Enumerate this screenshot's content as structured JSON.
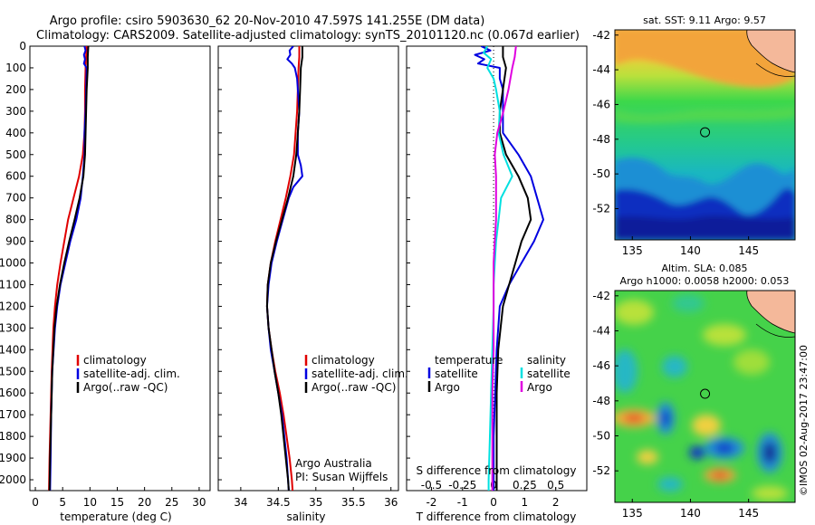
{
  "header": {
    "line1": "Argo profile: csiro 5903630_62 20-Nov-2010 47.597S 141.255E (DM data)",
    "line2": "Climatology: CARS2009. Satellite-adjusted climatology: synTS_20101120.nc (0.067d earlier)"
  },
  "colors": {
    "climatology": "#e00000",
    "satellite": "#0000e0",
    "argo": "#000000",
    "s_satellite": "#00e0e0",
    "s_argo": "#e000e0"
  },
  "chart_data": [
    {
      "type": "line",
      "panel": "temperature",
      "xlabel": "temperature (deg C)",
      "ylabel": "",
      "xlim": [
        -1,
        32
      ],
      "ylim": [
        2050,
        0
      ],
      "xticks": [
        0,
        5,
        10,
        15,
        20,
        25,
        30
      ],
      "yticks": [
        0,
        100,
        200,
        300,
        400,
        500,
        600,
        700,
        800,
        900,
        1000,
        1100,
        1200,
        1300,
        1400,
        1500,
        1600,
        1700,
        1800,
        1900,
        2000
      ],
      "legend": [
        "climatology",
        "satellite-adj. clim.",
        "Argo(..raw -QC)"
      ],
      "series": [
        {
          "name": "climatology",
          "color": "#e00000",
          "depth": [
            0,
            50,
            100,
            200,
            300,
            400,
            500,
            600,
            700,
            800,
            900,
            1000,
            1100,
            1200,
            1300,
            1500,
            1700,
            1900,
            2050
          ],
          "values": [
            9.4,
            9.3,
            9.2,
            9.1,
            9.1,
            9.0,
            8.7,
            8.0,
            7.0,
            6.0,
            5.3,
            4.6,
            4.0,
            3.6,
            3.3,
            3.0,
            2.8,
            2.6,
            2.5
          ]
        },
        {
          "name": "satellite-adj. clim.",
          "color": "#0000e0",
          "depth": [
            0,
            20,
            40,
            60,
            80,
            100,
            200,
            300,
            400,
            500,
            600,
            700,
            800,
            900,
            1000,
            1100,
            1200,
            1300,
            1500,
            1700,
            1900,
            2050
          ],
          "values": [
            9.0,
            9.2,
            8.9,
            9.1,
            8.9,
            9.4,
            9.3,
            9.2,
            9.0,
            9.0,
            8.7,
            8.3,
            7.5,
            6.4,
            5.5,
            4.6,
            4.0,
            3.6,
            3.1,
            2.9,
            2.8,
            2.7
          ]
        },
        {
          "name": "Argo(..raw -QC)",
          "color": "#000000",
          "depth": [
            0,
            50,
            100,
            200,
            300,
            400,
            500,
            600,
            700,
            800,
            900,
            1000,
            1100,
            1200,
            1300,
            1500,
            1700,
            1900,
            2050
          ],
          "values": [
            9.7,
            9.6,
            9.6,
            9.4,
            9.3,
            9.2,
            9.1,
            8.8,
            8.1,
            7.2,
            6.2,
            5.3,
            4.5,
            3.9,
            3.5,
            3.1,
            2.9,
            2.7,
            2.6
          ]
        }
      ]
    },
    {
      "type": "line",
      "panel": "salinity",
      "xlabel": "salinity",
      "xlim": [
        33.7,
        36.1
      ],
      "ylim": [
        2050,
        0
      ],
      "xticks": [
        34,
        34.5,
        35,
        35.5,
        36
      ],
      "xticklabels": [
        "34",
        "34.5",
        "35",
        "35.5",
        "36"
      ],
      "legend": [
        "climatology",
        "satellite-adj. clim.",
        "Argo(..raw -QC)"
      ],
      "annotation": [
        "Argo Australia",
        "PI: Susan Wijffels"
      ],
      "series": [
        {
          "name": "climatology",
          "color": "#e00000",
          "depth": [
            0,
            50,
            100,
            200,
            300,
            400,
            500,
            600,
            700,
            800,
            900,
            1000,
            1100,
            1200,
            1300,
            1400,
            1500,
            1600,
            1700,
            1800,
            1900,
            2000,
            2050
          ],
          "values": [
            34.78,
            34.78,
            34.77,
            34.76,
            34.75,
            34.73,
            34.71,
            34.66,
            34.6,
            34.53,
            34.46,
            34.4,
            34.36,
            34.35,
            34.37,
            34.41,
            34.46,
            34.52,
            34.57,
            34.61,
            34.65,
            34.68,
            34.69
          ]
        },
        {
          "name": "satellite-adj. clim.",
          "color": "#0000e0",
          "depth": [
            0,
            20,
            40,
            60,
            80,
            100,
            150,
            200,
            300,
            400,
            500,
            550,
            600,
            650,
            700,
            800,
            900,
            1000,
            1100,
            1200,
            1300,
            1400,
            1500,
            1600,
            1700,
            1800,
            1900,
            2000,
            2050
          ],
          "values": [
            34.7,
            34.65,
            34.66,
            34.62,
            34.68,
            34.72,
            34.75,
            34.76,
            34.78,
            34.76,
            34.76,
            34.8,
            34.82,
            34.7,
            34.64,
            34.56,
            34.48,
            34.41,
            34.37,
            34.35,
            34.37,
            34.4,
            34.45,
            34.5,
            34.55,
            34.58,
            34.61,
            34.63,
            34.64
          ]
        },
        {
          "name": "Argo(..raw -QC)",
          "color": "#000000",
          "depth": [
            0,
            50,
            100,
            200,
            300,
            400,
            500,
            600,
            700,
            800,
            900,
            1000,
            1100,
            1200,
            1300,
            1400,
            1500,
            1600,
            1700,
            1800,
            1900,
            2000,
            2050
          ],
          "values": [
            34.82,
            34.82,
            34.8,
            34.79,
            34.78,
            34.76,
            34.74,
            34.7,
            34.63,
            34.55,
            34.47,
            34.4,
            34.36,
            34.35,
            34.37,
            34.41,
            34.45,
            34.5,
            34.54,
            34.57,
            34.6,
            34.63,
            34.64
          ]
        }
      ]
    },
    {
      "type": "line",
      "panel": "difference",
      "xlabel": "T difference from climatology",
      "xlim": [
        -2.8,
        3.0
      ],
      "ylim": [
        2050,
        0
      ],
      "xticks": [
        -2,
        -1,
        0,
        1,
        2
      ],
      "top_label": "S difference from climatology",
      "top_ticks": [
        -0.5,
        -0.25,
        0,
        0.25,
        0.5
      ],
      "legend": {
        "temperature_title": "temperature",
        "salinity_title": "salinity",
        "items": [
          "satellite",
          "Argo",
          "satellite",
          "Argo"
        ]
      },
      "series": [
        {
          "name": "satellite",
          "group": "temperature",
          "color": "#0000e0",
          "depth": [
            0,
            20,
            40,
            60,
            80,
            100,
            150,
            200,
            300,
            400,
            500,
            600,
            700,
            800,
            900,
            1000,
            1100,
            1200,
            1400,
            1600,
            1800,
            2000,
            2050
          ],
          "values": [
            -0.4,
            -0.1,
            -0.6,
            -0.3,
            -0.5,
            0.2,
            0.2,
            0.3,
            0.3,
            0.3,
            0.8,
            1.2,
            1.4,
            1.6,
            1.3,
            0.9,
            0.5,
            0.2,
            0.1,
            0.05,
            0.0,
            0.0,
            0.0
          ]
        },
        {
          "name": "Argo",
          "group": "temperature",
          "color": "#000000",
          "depth": [
            0,
            50,
            100,
            200,
            300,
            400,
            500,
            600,
            700,
            800,
            900,
            1000,
            1100,
            1200,
            1400,
            1600,
            1800,
            2000,
            2050
          ],
          "values": [
            0.3,
            0.3,
            0.4,
            0.3,
            0.2,
            0.2,
            0.4,
            0.8,
            1.1,
            1.2,
            0.9,
            0.7,
            0.5,
            0.3,
            0.15,
            0.1,
            0.1,
            0.1,
            0.1
          ]
        },
        {
          "name": "satellite",
          "group": "salinity",
          "color": "#00e0e0",
          "depth": [
            0,
            30,
            60,
            100,
            150,
            200,
            300,
            400,
            500,
            600,
            700,
            800,
            900,
            1000,
            1100,
            1200,
            1400,
            1600,
            1800,
            2000,
            2050
          ],
          "values": [
            -0.05,
            -0.08,
            -0.02,
            -0.05,
            0.0,
            0.02,
            0.05,
            0.04,
            0.08,
            0.15,
            0.06,
            0.04,
            0.02,
            0.01,
            0.0,
            0.0,
            -0.01,
            -0.02,
            -0.03,
            -0.04,
            -0.04
          ]
        },
        {
          "name": "Argo",
          "group": "salinity",
          "color": "#e000e0",
          "depth": [
            0,
            50,
            100,
            200,
            300,
            400,
            500,
            600,
            700,
            800,
            900,
            1000,
            1100,
            1200,
            1400,
            1600,
            1800,
            2000,
            2050
          ],
          "values": [
            0.18,
            0.17,
            0.15,
            0.12,
            0.08,
            0.03,
            0.01,
            0.02,
            0.02,
            0.02,
            0.01,
            0.0,
            0.0,
            0.0,
            0.0,
            -0.01,
            -0.01,
            -0.01,
            -0.01
          ]
        }
      ]
    },
    {
      "type": "heatmap",
      "panel": "sst_map",
      "title": "sat. SST: 9.11  Argo: 9.57",
      "xticks": [
        135,
        140,
        145
      ],
      "yticks": [
        -42,
        -44,
        -46,
        -48,
        -50,
        -52
      ],
      "xlim": [
        133.5,
        149
      ],
      "ylim": [
        -53.8,
        -41.7
      ],
      "marker": {
        "lon": 141.255,
        "lat": -47.597
      }
    },
    {
      "type": "heatmap",
      "panel": "sla_map",
      "title": "Altim. SLA: 0.085",
      "subtitle": "Argo h1000: 0.0058 h2000: 0.053",
      "xticks": [
        135,
        140,
        145
      ],
      "yticks": [
        -42,
        -44,
        -46,
        -48,
        -50,
        -52
      ],
      "xlim": [
        133.5,
        149
      ],
      "ylim": [
        -53.8,
        -41.7
      ],
      "marker": {
        "lon": 141.255,
        "lat": -47.597
      }
    }
  ],
  "credit": "©IMOS 02-Aug-2017 23:47:00"
}
